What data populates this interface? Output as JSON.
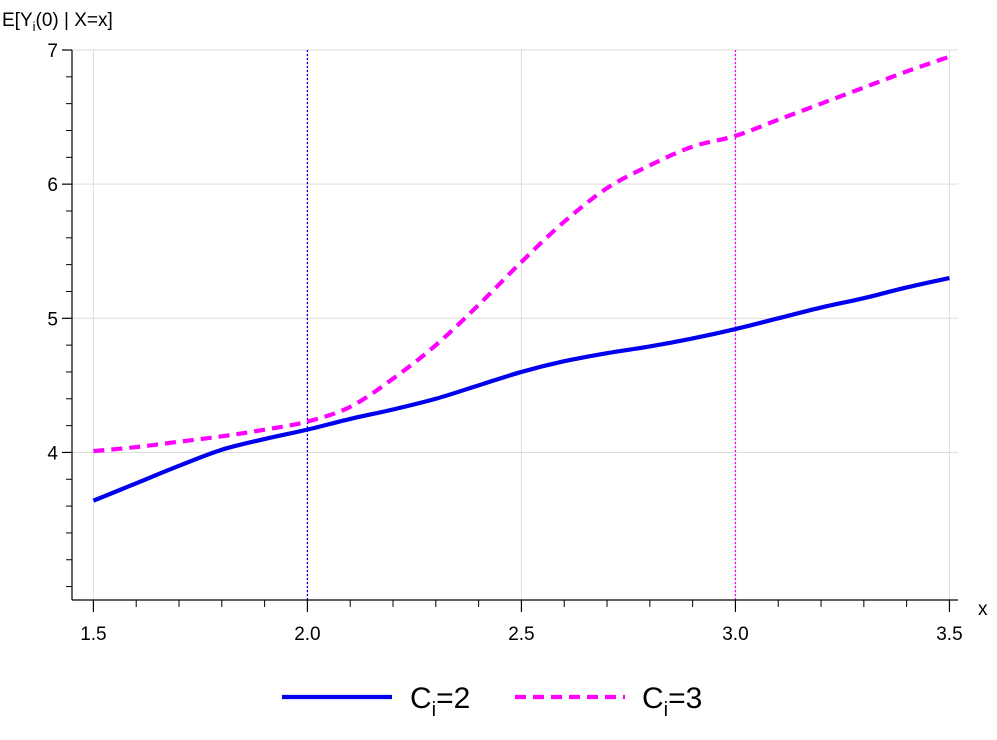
{
  "chart_data": {
    "type": "line",
    "ylabel_parts": [
      "E[Y",
      "i",
      "(0) | X=x]"
    ],
    "xlabel": "x",
    "xlim": [
      1.45,
      3.52
    ],
    "ylim": [
      2.9,
      7.0
    ],
    "x_ticks": [
      1.5,
      2.0,
      2.5,
      3.0,
      3.5
    ],
    "x_tick_labels": [
      "1.5",
      "2.0",
      "2.5",
      "3.0",
      "3.5"
    ],
    "x_minor_ticks": [
      1.6,
      1.7,
      1.8,
      1.9,
      2.1,
      2.2,
      2.3,
      2.4,
      2.6,
      2.7,
      2.8,
      2.9,
      3.1,
      3.2,
      3.3,
      3.4
    ],
    "y_ticks": [
      4,
      5,
      6,
      7
    ],
    "y_tick_labels": [
      "4",
      "5",
      "6",
      "7"
    ],
    "y_minor_ticks": [
      3,
      3.2,
      3.4,
      3.6,
      3.8,
      4.2,
      4.4,
      4.6,
      4.8,
      5.2,
      5.4,
      5.6,
      5.8,
      6.2,
      6.4,
      6.6,
      6.8
    ],
    "grid": true,
    "legend_position": "bottom",
    "vlines": [
      {
        "x": 2.0,
        "color": "#0000ff"
      },
      {
        "x": 3.0,
        "color": "#ff00ff"
      }
    ],
    "series": [
      {
        "legend_sub": "i",
        "legend_parts": [
          "C",
          "i",
          "=2"
        ],
        "color": "#0000ee",
        "style": "solid",
        "x": [
          1.5,
          1.6,
          1.7,
          1.8,
          1.9,
          2.0,
          2.1,
          2.2,
          2.3,
          2.4,
          2.5,
          2.6,
          2.7,
          2.8,
          2.9,
          3.0,
          3.1,
          3.2,
          3.3,
          3.4,
          3.5
        ],
        "y": [
          3.64,
          3.77,
          3.9,
          4.02,
          4.1,
          4.17,
          4.25,
          4.32,
          4.4,
          4.5,
          4.6,
          4.68,
          4.74,
          4.79,
          4.85,
          4.92,
          5.0,
          5.08,
          5.15,
          5.23,
          5.3
        ]
      },
      {
        "legend_parts": [
          "C",
          "i",
          "=3"
        ],
        "color": "#ff00ff",
        "style": "dashed",
        "x": [
          1.5,
          1.6,
          1.7,
          1.8,
          1.9,
          2.0,
          2.1,
          2.2,
          2.3,
          2.4,
          2.5,
          2.6,
          2.7,
          2.8,
          2.9,
          3.0,
          3.1,
          3.2,
          3.3,
          3.4,
          3.5
        ],
        "y": [
          4.01,
          4.04,
          4.08,
          4.12,
          4.17,
          4.23,
          4.34,
          4.55,
          4.8,
          5.1,
          5.42,
          5.72,
          5.97,
          6.14,
          6.28,
          6.36,
          6.48,
          6.6,
          6.72,
          6.84,
          6.95
        ]
      }
    ]
  }
}
